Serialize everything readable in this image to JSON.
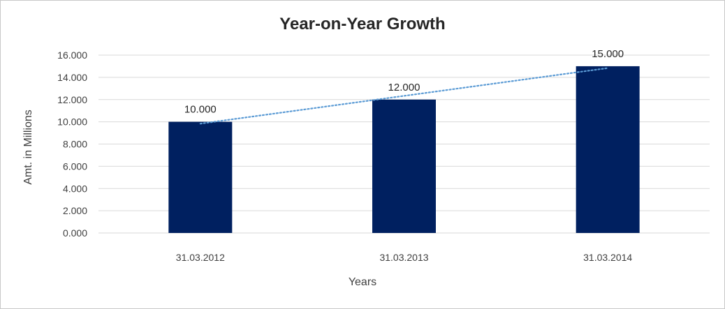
{
  "chart_data": {
    "type": "bar",
    "title": "Year-on-Year Growth",
    "xlabel": "Years",
    "ylabel": "Amt. in Millions",
    "categories": [
      "31.03.2012",
      "31.03.2013",
      "31.03.2014"
    ],
    "values": [
      10,
      12,
      15
    ],
    "data_labels": [
      "10.000",
      "12.000",
      "15.000"
    ],
    "y_ticks": [
      0,
      2,
      4,
      6,
      8,
      10,
      12,
      14,
      16
    ],
    "y_tick_labels": [
      "0.000",
      "2.000",
      "4.000",
      "6.000",
      "8.000",
      "10.000",
      "12.000",
      "14.000",
      "16.000"
    ],
    "ylim": [
      0,
      16
    ],
    "grid": true,
    "legend": false,
    "trendline": "linear, dotted",
    "colors": {
      "bar": "#002060",
      "trendline": "#5b9bd5",
      "grid": "#d9d9d9"
    }
  }
}
